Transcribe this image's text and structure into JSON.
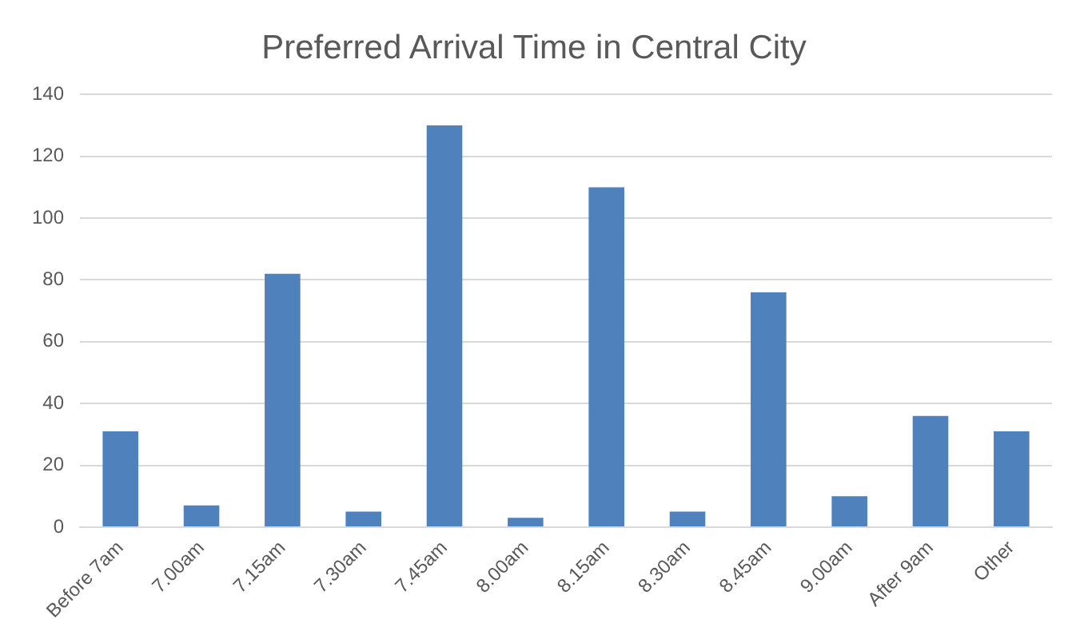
{
  "chart_data": {
    "type": "bar",
    "title": "Preferred Arrival Time in Central City",
    "categories": [
      "Before 7am",
      "7.00am",
      "7.15am",
      "7.30am",
      "7.45am",
      "8.00am",
      "8.15am",
      "8.30am",
      "8.45am",
      "9.00am",
      "After 9am",
      "Other"
    ],
    "values": [
      31,
      7,
      82,
      5,
      130,
      3,
      110,
      5,
      76,
      10,
      36,
      31
    ],
    "color": "#4f81bd",
    "ylim": [
      0,
      140
    ],
    "yticks": [
      0,
      20,
      40,
      60,
      80,
      100,
      120,
      140
    ],
    "grid": "y",
    "legend": false
  }
}
